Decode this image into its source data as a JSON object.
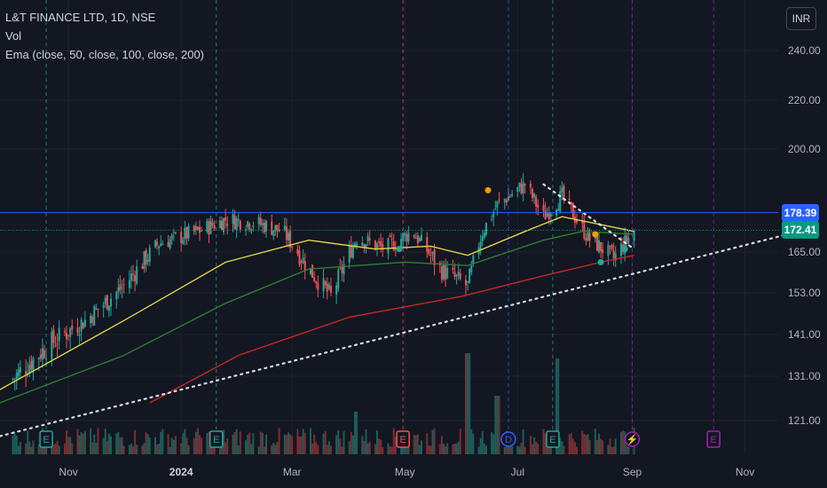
{
  "header": {
    "symbol_line": "L&T FINANCE LTD, 1D, NSE",
    "vol_label": "Vol",
    "ema_label": "Ema (close, 50, close, 100, close, 200)",
    "currency_button": "INR"
  },
  "price_badges": {
    "level_line": {
      "value": "178.39",
      "color": "#2962ff"
    },
    "last_price": {
      "value": "172.41",
      "color": "#089981"
    }
  },
  "chart_data": {
    "type": "candlestick",
    "title": "L&T FINANCE LTD, 1D, NSE",
    "y_ticks": [
      "240.00",
      "220.00",
      "200.00",
      "165.00",
      "153.00",
      "141.00",
      "131.00",
      "121.00"
    ],
    "x_ticks": [
      "Nov",
      "2024",
      "Mar",
      "May",
      "Jul",
      "Sep",
      "Nov"
    ],
    "y_range": [
      115,
      248
    ],
    "x_range": [
      "2023-09-25",
      "2024-11-30"
    ],
    "horizontal_level": 178.39,
    "last_price": 172.41,
    "candle_anchors": [
      {
        "date": "2023-10-01",
        "close": 130
      },
      {
        "date": "2023-10-20",
        "close": 138
      },
      {
        "date": "2023-11-10",
        "close": 145
      },
      {
        "date": "2023-12-01",
        "close": 155
      },
      {
        "date": "2023-12-20",
        "close": 168
      },
      {
        "date": "2024-01-10",
        "close": 172
      },
      {
        "date": "2024-01-25",
        "close": 176
      },
      {
        "date": "2024-02-10",
        "close": 175
      },
      {
        "date": "2024-02-25",
        "close": 172
      },
      {
        "date": "2024-03-10",
        "close": 160
      },
      {
        "date": "2024-03-22",
        "close": 152
      },
      {
        "date": "2024-04-05",
        "close": 170
      },
      {
        "date": "2024-04-20",
        "close": 166
      },
      {
        "date": "2024-05-05",
        "close": 172
      },
      {
        "date": "2024-05-20",
        "close": 160
      },
      {
        "date": "2024-06-04",
        "close": 155
      },
      {
        "date": "2024-06-12",
        "close": 172
      },
      {
        "date": "2024-06-20",
        "close": 181
      },
      {
        "date": "2024-07-05",
        "close": 188
      },
      {
        "date": "2024-07-15",
        "close": 177
      },
      {
        "date": "2024-07-25",
        "close": 184
      },
      {
        "date": "2024-08-08",
        "close": 170
      },
      {
        "date": "2024-08-22",
        "close": 163
      },
      {
        "date": "2024-09-02",
        "close": 172.41
      }
    ],
    "series": [
      {
        "name": "EMA 50",
        "color": "#e3d449",
        "points": [
          [
            "2023-09-25",
            128
          ],
          [
            "2023-12-01",
            145
          ],
          [
            "2024-01-25",
            162
          ],
          [
            "2024-03-10",
            169
          ],
          [
            "2024-04-15",
            166
          ],
          [
            "2024-05-15",
            167
          ],
          [
            "2024-06-04",
            164
          ],
          [
            "2024-07-05",
            172
          ],
          [
            "2024-07-25",
            177
          ],
          [
            "2024-09-02",
            172
          ]
        ]
      },
      {
        "name": "EMA 100",
        "color": "#2e7d32",
        "points": [
          [
            "2023-09-25",
            125
          ],
          [
            "2023-12-01",
            136
          ],
          [
            "2024-01-25",
            150
          ],
          [
            "2024-03-10",
            160
          ],
          [
            "2024-05-01",
            162
          ],
          [
            "2024-06-04",
            161
          ],
          [
            "2024-07-15",
            169
          ],
          [
            "2024-08-05",
            172
          ],
          [
            "2024-09-02",
            171
          ]
        ]
      },
      {
        "name": "EMA 200",
        "color": "#c62828",
        "points": [
          [
            "2023-12-15",
            125
          ],
          [
            "2024-02-01",
            136
          ],
          [
            "2024-04-01",
            146
          ],
          [
            "2024-06-01",
            152
          ],
          [
            "2024-07-15",
            158
          ],
          [
            "2024-08-15",
            162
          ],
          [
            "2024-09-02",
            164
          ]
        ]
      }
    ],
    "trendlines": [
      {
        "style": "dotted",
        "color": "#ffffff",
        "points": [
          [
            "2023-09-25",
            117.5
          ],
          [
            "2024-11-30",
            172
          ]
        ]
      },
      {
        "style": "dotted",
        "color": "#ffffff",
        "points": [
          [
            "2024-07-15",
            188
          ],
          [
            "2024-09-02",
            166
          ]
        ]
      }
    ],
    "markers": [
      {
        "date": "2024-06-15",
        "price": 186,
        "color": "#ff9800"
      },
      {
        "date": "2024-08-12",
        "price": 171,
        "color": "#ff9800"
      },
      {
        "date": "2024-04-28",
        "price": 166,
        "color": "#26a69a"
      },
      {
        "date": "2024-08-28",
        "price": 166,
        "color": "#26a69a"
      },
      {
        "date": "2024-08-15",
        "price": 162,
        "color": "#26a69a"
      }
    ],
    "event_markers": [
      {
        "date": "2023-10-20",
        "label": "E",
        "type": "earnings"
      },
      {
        "date": "2024-01-20",
        "label": "E",
        "type": "earnings"
      },
      {
        "date": "2024-04-30",
        "label": "E",
        "type": "earnings"
      },
      {
        "date": "2024-06-26",
        "label": "D",
        "type": "dividend"
      },
      {
        "date": "2024-07-20",
        "label": "E",
        "type": "earnings"
      },
      {
        "date": "2024-09-01",
        "label": "⚡",
        "type": "split"
      },
      {
        "date": "2024-10-15",
        "label": "E",
        "type": "upcoming-earnings"
      }
    ],
    "volume_spikes": [
      {
        "date": "2024-06-04",
        "level": 0.95
      },
      {
        "date": "2024-07-22",
        "level": 0.9
      },
      {
        "date": "2024-06-20",
        "level": 0.55
      },
      {
        "date": "2024-04-05",
        "level": 0.4
      }
    ],
    "colors": {
      "up": "#26a69a",
      "down": "#ef5350",
      "background": "#131722",
      "grid": "#1f2330"
    }
  }
}
